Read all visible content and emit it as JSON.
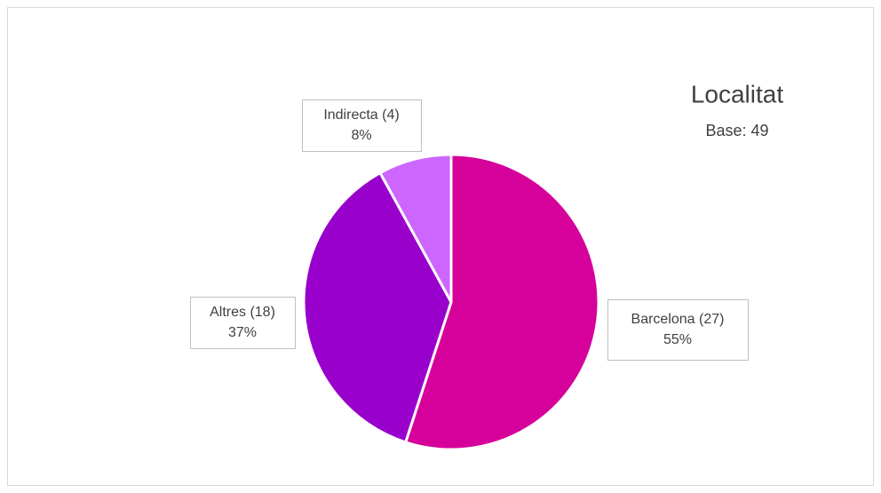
{
  "chart_data": {
    "type": "pie",
    "title": "Localitat",
    "subtitle": "Base: 49",
    "categories": [
      "Barcelona (27)",
      "Altres (18)",
      "Indirecta (4)"
    ],
    "values": [
      55,
      37,
      8
    ],
    "value_labels": [
      "55%",
      "37%",
      "8%"
    ],
    "colors": [
      "#d6009b",
      "#9900cc",
      "#cc66ff"
    ]
  }
}
